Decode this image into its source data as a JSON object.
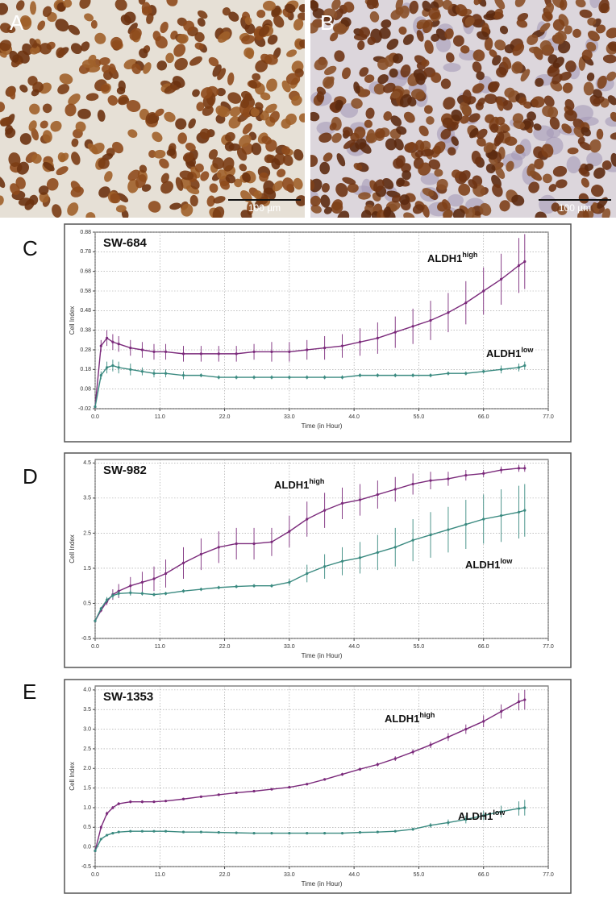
{
  "images": [
    {
      "label": "A",
      "scale_bar": "100 µm"
    },
    {
      "label": "B",
      "scale_bar": "100 µm"
    }
  ],
  "chart_data": [
    {
      "type": "line",
      "panel": "C",
      "title": "SW-684",
      "x_label": "Time (in Hour)",
      "y_label": "Cell Index",
      "x": [
        0,
        1,
        2,
        3,
        4,
        6,
        8,
        10,
        12,
        15,
        18,
        21,
        24,
        27,
        30,
        33,
        36,
        39,
        42,
        45,
        48,
        51,
        54,
        57,
        60,
        63,
        66,
        69,
        72,
        73
      ],
      "series": [
        {
          "name": "ALDH1",
          "name_superscript": "high",
          "color": "#7b2a7b",
          "values": [
            -0.01,
            0.3,
            0.34,
            0.32,
            0.31,
            0.29,
            0.28,
            0.27,
            0.27,
            0.26,
            0.26,
            0.26,
            0.26,
            0.27,
            0.27,
            0.27,
            0.28,
            0.29,
            0.3,
            0.32,
            0.34,
            0.37,
            0.4,
            0.43,
            0.47,
            0.52,
            0.58,
            0.64,
            0.71,
            0.73
          ],
          "errors": [
            0,
            0.03,
            0.04,
            0.04,
            0.04,
            0.04,
            0.04,
            0.04,
            0.04,
            0.04,
            0.04,
            0.04,
            0.04,
            0.04,
            0.05,
            0.05,
            0.05,
            0.06,
            0.06,
            0.07,
            0.08,
            0.08,
            0.09,
            0.1,
            0.1,
            0.11,
            0.12,
            0.13,
            0.14,
            0.14
          ]
        },
        {
          "name": "ALDH1",
          "name_superscript": "low",
          "color": "#3a8a80",
          "values": [
            -0.01,
            0.15,
            0.19,
            0.2,
            0.19,
            0.18,
            0.17,
            0.16,
            0.16,
            0.15,
            0.15,
            0.14,
            0.14,
            0.14,
            0.14,
            0.14,
            0.14,
            0.14,
            0.14,
            0.15,
            0.15,
            0.15,
            0.15,
            0.15,
            0.16,
            0.16,
            0.17,
            0.18,
            0.19,
            0.2
          ],
          "errors": [
            0,
            0.02,
            0.03,
            0.03,
            0.03,
            0.03,
            0.02,
            0.02,
            0.02,
            0.02,
            0.01,
            0.01,
            0.01,
            0.01,
            0.01,
            0.01,
            0.01,
            0.01,
            0.01,
            0.01,
            0.01,
            0.01,
            0.01,
            0.01,
            0.01,
            0.01,
            0.01,
            0.02,
            0.02,
            0.02
          ]
        }
      ],
      "xlim": [
        0,
        77
      ],
      "xticks": [
        {
          "value": 0,
          "label": "0.0"
        },
        {
          "value": 11,
          "label": "11.0"
        },
        {
          "value": 22,
          "label": "22.0"
        },
        {
          "value": 33,
          "label": "33.0"
        },
        {
          "value": 44,
          "label": "44.0"
        },
        {
          "value": 55,
          "label": "55.0"
        },
        {
          "value": 66,
          "label": "66.0"
        },
        {
          "value": 77,
          "label": "77.0"
        }
      ],
      "ylim": [
        -0.02,
        0.88
      ],
      "yticks": [
        -0.02,
        0.08,
        0.18,
        0.28,
        0.38,
        0.48,
        0.58,
        0.68,
        0.78,
        0.88
      ],
      "grid": true
    },
    {
      "type": "line",
      "panel": "D",
      "title": "SW-982",
      "x_label": "Time (in Hour)",
      "y_label": "Cell Index",
      "x": [
        0,
        1,
        2,
        3,
        4,
        6,
        8,
        10,
        12,
        15,
        18,
        21,
        24,
        27,
        30,
        33,
        36,
        39,
        42,
        45,
        48,
        51,
        54,
        57,
        60,
        63,
        66,
        69,
        72,
        73
      ],
      "series": [
        {
          "name": "ALDH1",
          "name_superscript": "high",
          "color": "#7b2a7b",
          "values": [
            0,
            0.3,
            0.55,
            0.75,
            0.85,
            1.0,
            1.1,
            1.2,
            1.35,
            1.65,
            1.9,
            2.1,
            2.2,
            2.2,
            2.25,
            2.55,
            2.9,
            3.15,
            3.35,
            3.45,
            3.6,
            3.75,
            3.9,
            4.0,
            4.05,
            4.15,
            4.2,
            4.3,
            4.35,
            4.35
          ],
          "errors": [
            0,
            0.05,
            0.1,
            0.15,
            0.2,
            0.25,
            0.3,
            0.35,
            0.4,
            0.45,
            0.45,
            0.45,
            0.45,
            0.45,
            0.4,
            0.45,
            0.5,
            0.5,
            0.45,
            0.45,
            0.4,
            0.35,
            0.3,
            0.25,
            0.2,
            0.15,
            0.1,
            0.1,
            0.1,
            0.1
          ]
        },
        {
          "name": "ALDH1",
          "name_superscript": "low",
          "color": "#3a8a80",
          "values": [
            0,
            0.35,
            0.6,
            0.72,
            0.78,
            0.8,
            0.78,
            0.75,
            0.78,
            0.85,
            0.9,
            0.95,
            0.98,
            1.0,
            1.0,
            1.1,
            1.35,
            1.55,
            1.7,
            1.8,
            1.95,
            2.1,
            2.3,
            2.45,
            2.6,
            2.75,
            2.9,
            3.0,
            3.1,
            3.15
          ],
          "errors": [
            0,
            0.05,
            0.08,
            0.08,
            0.08,
            0.08,
            0.06,
            0.05,
            0.05,
            0.05,
            0.05,
            0.05,
            0.05,
            0.05,
            0.05,
            0.1,
            0.25,
            0.35,
            0.4,
            0.45,
            0.5,
            0.55,
            0.6,
            0.65,
            0.65,
            0.7,
            0.7,
            0.75,
            0.75,
            0.75
          ]
        }
      ],
      "xlim": [
        0,
        77
      ],
      "xticks": [
        {
          "value": 0,
          "label": "0.0"
        },
        {
          "value": 11,
          "label": "11.0"
        },
        {
          "value": 22,
          "label": "22.0"
        },
        {
          "value": 33,
          "label": "33.0"
        },
        {
          "value": 44,
          "label": "44.0"
        },
        {
          "value": 55,
          "label": "55.0"
        },
        {
          "value": 66,
          "label": "66.0"
        },
        {
          "value": 77,
          "label": "77.0"
        }
      ],
      "ylim": [
        -0.5,
        4.6
      ],
      "yticks": [
        -0.5,
        0.5,
        1.5,
        2.5,
        3.5,
        4.5
      ],
      "grid": true
    },
    {
      "type": "line",
      "panel": "E",
      "title": "SW-1353",
      "x_label": "Time (in Hour)",
      "y_label": "Cell Index",
      "x": [
        0,
        1,
        2,
        3,
        4,
        6,
        8,
        10,
        12,
        15,
        18,
        21,
        24,
        27,
        30,
        33,
        36,
        39,
        42,
        45,
        48,
        51,
        54,
        57,
        60,
        63,
        66,
        69,
        72,
        73
      ],
      "series": [
        {
          "name": "ALDH1",
          "name_superscript": "high",
          "color": "#7b2a7b",
          "values": [
            -0.1,
            0.5,
            0.85,
            1.0,
            1.1,
            1.15,
            1.15,
            1.15,
            1.17,
            1.22,
            1.28,
            1.33,
            1.38,
            1.42,
            1.47,
            1.52,
            1.6,
            1.72,
            1.85,
            1.98,
            2.1,
            2.25,
            2.42,
            2.6,
            2.8,
            3.0,
            3.2,
            3.45,
            3.7,
            3.75
          ],
          "errors": [
            0,
            0.05,
            0.05,
            0.04,
            0.04,
            0.04,
            0.04,
            0.03,
            0.03,
            0.03,
            0.03,
            0.03,
            0.03,
            0.03,
            0.03,
            0.03,
            0.03,
            0.03,
            0.04,
            0.04,
            0.05,
            0.06,
            0.07,
            0.08,
            0.1,
            0.12,
            0.15,
            0.18,
            0.22,
            0.25
          ]
        },
        {
          "name": "ALDH1",
          "name_superscript": "low",
          "color": "#3a8a80",
          "values": [
            -0.1,
            0.2,
            0.3,
            0.35,
            0.38,
            0.4,
            0.4,
            0.4,
            0.4,
            0.38,
            0.38,
            0.37,
            0.36,
            0.35,
            0.35,
            0.35,
            0.35,
            0.35,
            0.35,
            0.37,
            0.38,
            0.4,
            0.45,
            0.55,
            0.62,
            0.7,
            0.8,
            0.9,
            0.98,
            1.0
          ],
          "errors": [
            0,
            0.03,
            0.03,
            0.03,
            0.03,
            0.03,
            0.03,
            0.03,
            0.03,
            0.03,
            0.03,
            0.03,
            0.03,
            0.03,
            0.03,
            0.03,
            0.03,
            0.03,
            0.03,
            0.03,
            0.03,
            0.03,
            0.04,
            0.06,
            0.08,
            0.1,
            0.12,
            0.15,
            0.18,
            0.2
          ]
        }
      ],
      "xlim": [
        0,
        77
      ],
      "xticks": [
        {
          "value": 0,
          "label": "0.0"
        },
        {
          "value": 11,
          "label": "11.0"
        },
        {
          "value": 22,
          "label": "22.0"
        },
        {
          "value": 33,
          "label": "33.0"
        },
        {
          "value": 44,
          "label": "44.0"
        },
        {
          "value": 55,
          "label": "55.0"
        },
        {
          "value": 66,
          "label": "66.0"
        },
        {
          "value": 77,
          "label": "77.0"
        }
      ],
      "ylim": [
        -0.5,
        4.1
      ],
      "yticks": [
        -0.5,
        {
          "value": 0,
          "label": "0.0"
        },
        0.5,
        {
          "value": 1,
          "label": "1.0"
        },
        1.5,
        {
          "value": 2,
          "label": "2.0"
        },
        2.5,
        {
          "value": 3,
          "label": "3.0"
        },
        3.5,
        {
          "value": 4,
          "label": "4.0"
        }
      ],
      "grid": true
    }
  ]
}
